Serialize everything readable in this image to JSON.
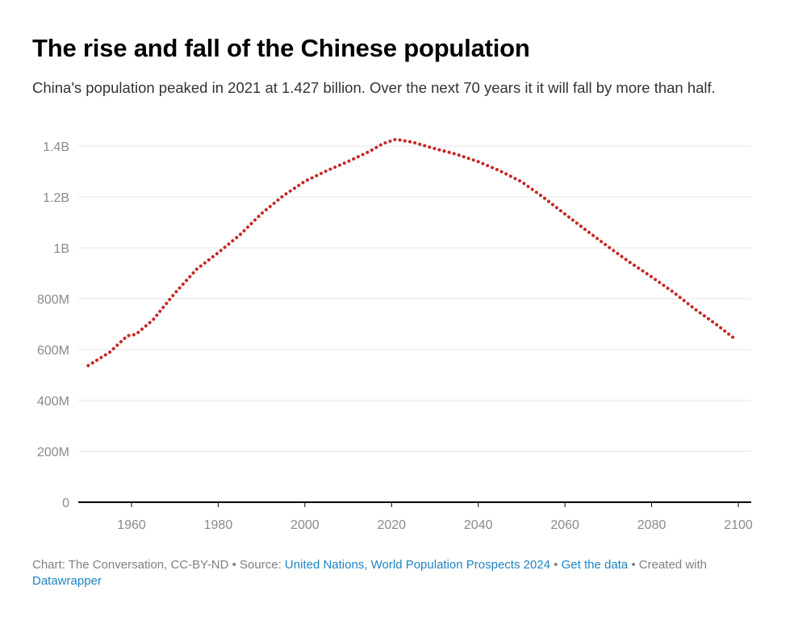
{
  "header": {
    "title": "The rise and fall of the Chinese population",
    "subtitle": "China's population peaked in 2021 at 1.427 billion. Over the next 70 years it it will fall by more than half."
  },
  "footer": {
    "credit": "Chart: The Conversation, CC-BY-ND",
    "source_prefix": "Source:",
    "source_link": "United Nations, World Population Prospects 2024",
    "data_link": "Get the data",
    "created_prefix": "Created with",
    "created_link": "Datawrapper",
    "separator": "•"
  },
  "colors": {
    "line": "#c62828",
    "grid": "#e4e4e4",
    "axis": "#000000",
    "link": "#1f84c1",
    "muted_text": "#8a8a8a"
  },
  "chart_data": {
    "type": "line",
    "title": "The rise and fall of the Chinese population",
    "xlabel": "",
    "ylabel": "",
    "line_style": "dotted",
    "grid": true,
    "xlim": [
      1950,
      2100
    ],
    "ylim": [
      0,
      1400000000
    ],
    "x_ticks": [
      {
        "value": 1960,
        "label": "1960"
      },
      {
        "value": 1980,
        "label": "1980"
      },
      {
        "value": 2000,
        "label": "2000"
      },
      {
        "value": 2020,
        "label": "2020"
      },
      {
        "value": 2040,
        "label": "2040"
      },
      {
        "value": 2060,
        "label": "2060"
      },
      {
        "value": 2080,
        "label": "2080"
      },
      {
        "value": 2100,
        "label": "2100"
      }
    ],
    "y_ticks": [
      {
        "value": 0,
        "label": "0"
      },
      {
        "value": 200000000,
        "label": "200M"
      },
      {
        "value": 400000000,
        "label": "400M"
      },
      {
        "value": 600000000,
        "label": "600M"
      },
      {
        "value": 800000000,
        "label": "800M"
      },
      {
        "value": 1000000000,
        "label": "1B"
      },
      {
        "value": 1200000000,
        "label": "1.2B"
      },
      {
        "value": 1400000000,
        "label": "1.4B"
      }
    ],
    "series": [
      {
        "x": [
          1950,
          1955,
          1959,
          1961,
          1965,
          1970,
          1975,
          1980,
          1985,
          1990,
          1995,
          2000,
          2005,
          2010,
          2015,
          2018,
          2021,
          2025,
          2030,
          2035,
          2040,
          2045,
          2050,
          2055,
          2060,
          2065,
          2070,
          2075,
          2080,
          2085,
          2090,
          2095,
          2099
        ],
        "values": [
          537000000,
          590000000,
          654000000,
          660000000,
          718000000,
          822000000,
          916000000,
          981000000,
          1051000000,
          1135000000,
          1205000000,
          1262000000,
          1303000000,
          1340000000,
          1380000000,
          1410000000,
          1427000000,
          1415000000,
          1390000000,
          1368000000,
          1339000000,
          1303000000,
          1260000000,
          1199000000,
          1133000000,
          1068000000,
          1004000000,
          943000000,
          886000000,
          826000000,
          759000000,
          698000000,
          645000000
        ]
      }
    ]
  }
}
